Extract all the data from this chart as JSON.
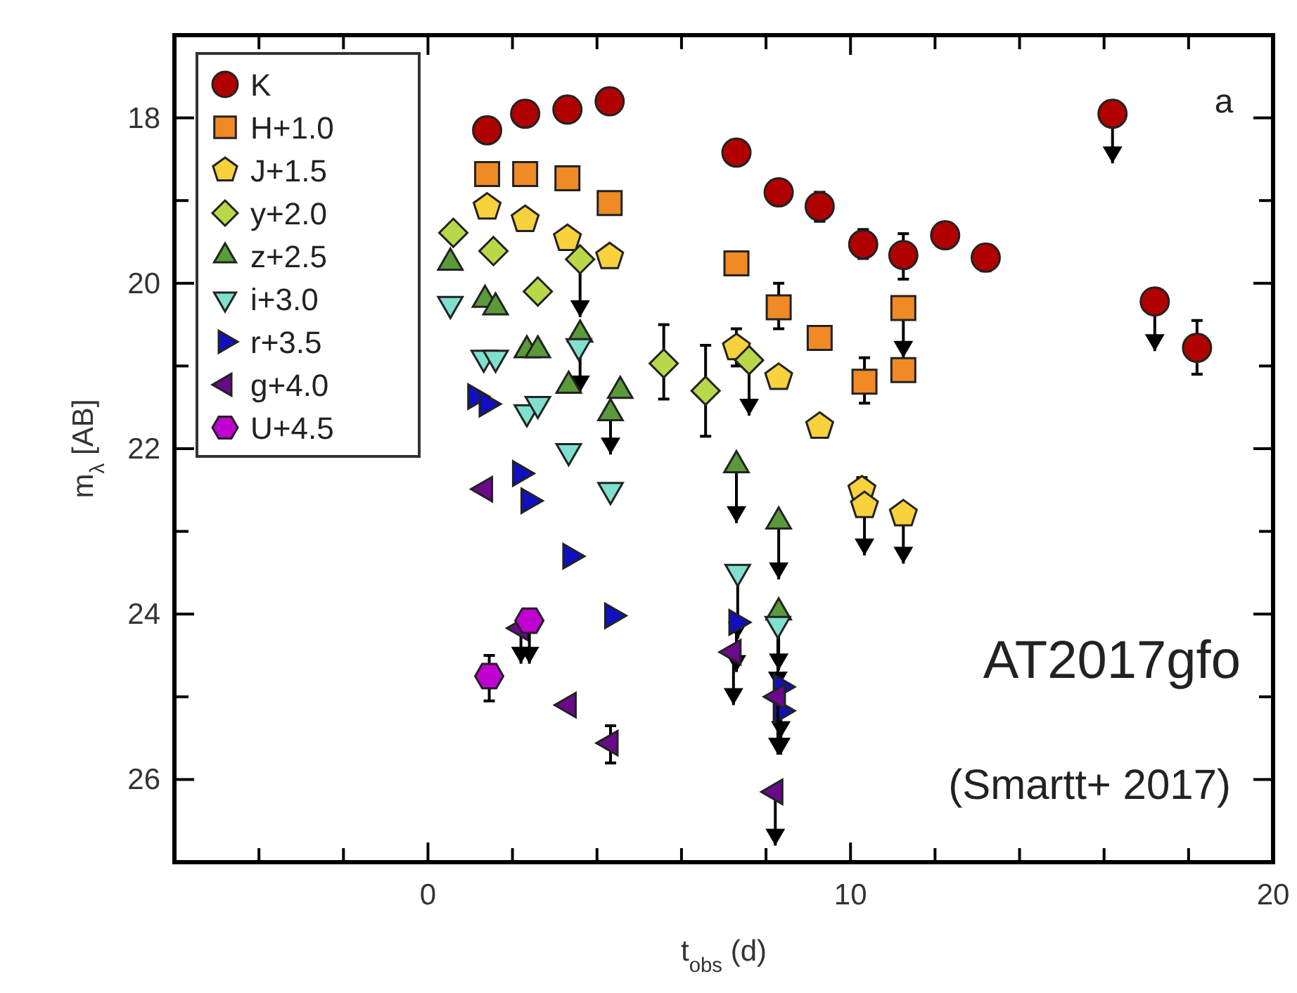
{
  "chart_data": {
    "type": "scatter",
    "xlabel": "t$_{obs}$ (d)",
    "ylabel": "m$_{λ}$ [AB]",
    "xlim": [
      -6,
      20
    ],
    "ylim": [
      27,
      17
    ],
    "xticks": [
      {
        "value": -4,
        "label": null
      },
      {
        "value": -2,
        "label": null
      },
      0,
      {
        "value": 2,
        "label": null
      },
      {
        "value": 4,
        "label": null
      },
      {
        "value": 6,
        "label": null
      },
      {
        "value": 8,
        "label": null
      },
      10,
      {
        "value": 12,
        "label": null
      },
      {
        "value": 14,
        "label": null
      },
      {
        "value": 16,
        "label": null
      },
      {
        "value": 18,
        "label": null
      },
      20
    ],
    "yticks": [
      18,
      {
        "value": 19,
        "label": null
      },
      20,
      {
        "value": 21,
        "label": null
      },
      22,
      {
        "value": 23,
        "label": null
      },
      24,
      {
        "value": 25,
        "label": null
      },
      26
    ],
    "grid": false,
    "legend": "top left",
    "annotations": [
      "a",
      "AT2017gfo",
      "(Smartt+ 2017)"
    ],
    "series": [
      {
        "name": "K",
        "color": "#b00000",
        "marker": "circle",
        "x": [
          1.4,
          2.3,
          3.3,
          4.3,
          7.3,
          8.3,
          9.27,
          10.3,
          11.25,
          12.24,
          13.2,
          16.2,
          17.2,
          18.2
        ],
        "values": [
          18.15,
          17.95,
          17.9,
          17.8,
          18.42,
          18.9,
          19.07,
          19.53,
          19.66,
          19.42,
          19.69,
          17.95,
          20.22,
          20.78
        ],
        "errors": [
          null,
          null,
          null,
          null,
          null,
          null,
          [
            18.9,
            19.25
          ],
          [
            19.35,
            19.7
          ],
          [
            19.4,
            19.95
          ],
          null,
          [
            19.55,
            19.85
          ],
          [
            17.95,
            18.55
          ],
          [
            20.22,
            20.82
          ],
          [
            20.45,
            21.1
          ]
        ]
      },
      {
        "name": "H+1.0",
        "color": "#f08a24",
        "marker": "square",
        "x": [
          1.4,
          2.3,
          3.3,
          4.3,
          7.3,
          8.3,
          9.27,
          10.33,
          11.25,
          11.25
        ],
        "values": [
          18.68,
          18.68,
          18.73,
          19.03,
          19.76,
          20.29,
          20.66,
          21.19,
          20.3,
          21.05
        ],
        "errors": [
          null,
          null,
          null,
          null,
          null,
          [
            20.0,
            20.55
          ],
          null,
          [
            20.9,
            21.45
          ],
          [
            20.3,
            20.9
          ],
          [
            20.95,
            21.15
          ]
        ]
      },
      {
        "name": "J+1.5",
        "color": "#f7d23c",
        "x": [
          1.4,
          2.3,
          3.3,
          4.3,
          7.3,
          8.3,
          9.27,
          10.27,
          10.33,
          11.25
        ],
        "values": [
          19.08,
          19.23,
          19.46,
          19.68,
          20.78,
          21.14,
          21.73,
          22.5,
          22.69,
          22.79
        ],
        "errors": [
          null,
          null,
          null,
          null,
          [
            20.55,
            21.0
          ],
          null,
          null,
          [
            22.35,
            22.6
          ],
          [
            22.69,
            23.29
          ],
          [
            22.79,
            23.39
          ]
        ]
      },
      {
        "name": "y+2.0",
        "color": "#b8d84a",
        "marker": "diamond",
        "x": [
          0.6,
          1.55,
          2.6,
          3.6,
          5.58,
          6.57,
          7.6
        ],
        "values": [
          19.39,
          19.61,
          20.1,
          19.71,
          20.97,
          21.3,
          20.93
        ],
        "errors": [
          null,
          null,
          null,
          [
            19.71,
            20.41
          ],
          [
            20.5,
            21.4
          ],
          [
            20.75,
            21.85
          ],
          [
            20.93,
            21.6
          ]
        ]
      },
      {
        "name": "z+2.5",
        "color": "#5a9a3a",
        "marker": "triangle",
        "x": [
          0.53,
          1.35,
          1.6,
          2.34,
          2.6,
          3.6,
          3.33,
          4.55,
          4.32,
          7.3,
          8.3,
          8.3
        ],
        "values": [
          19.75,
          20.2,
          20.29,
          20.81,
          20.81,
          20.62,
          21.24,
          21.3,
          21.57,
          22.2,
          22.88,
          23.98
        ],
        "errors": [
          null,
          null,
          null,
          null,
          null,
          [
            20.62,
            21.32
          ],
          null,
          null,
          [
            21.57,
            22.07
          ],
          [
            22.2,
            22.9
          ],
          [
            22.88,
            23.58
          ],
          [
            23.98,
            24.68
          ]
        ]
      },
      {
        "name": "i+3.0",
        "color": "#7fe0d0",
        "marker": "triangle-down",
        "x": [
          0.53,
          1.32,
          1.6,
          2.34,
          2.6,
          3.57,
          3.33,
          4.32,
          7.33,
          8.28
        ],
        "values": [
          20.25,
          20.9,
          20.9,
          21.56,
          21.46,
          20.76,
          22.03,
          22.5,
          23.49,
          24.12
        ],
        "errors": [
          null,
          null,
          null,
          null,
          null,
          null,
          null,
          null,
          [
            23.49,
            24.3
          ],
          [
            24.12,
            24.9
          ]
        ]
      },
      {
        "name": "r+3.5",
        "color": "#1010c0",
        "marker": "triangle-right",
        "x": [
          1.12,
          1.39,
          2.18,
          2.38,
          3.37,
          4.36,
          7.3,
          8.35,
          8.35
        ],
        "values": [
          21.37,
          21.46,
          22.3,
          22.63,
          23.3,
          24.02,
          24.1,
          24.88,
          25.17
        ],
        "errors": [
          null,
          null,
          null,
          null,
          null,
          null,
          [
            24.1,
            24.7
          ],
          [
            24.88,
            25.5
          ],
          [
            25.17,
            25.7
          ]
        ]
      },
      {
        "name": "g+4.0",
        "color": "#6a0a8a",
        "marker": "triangle-left",
        "x": [
          1.35,
          2.2,
          3.33,
          4.32,
          7.23,
          8.28,
          8.22
        ],
        "values": [
          22.49,
          24.17,
          25.1,
          25.56,
          24.46,
          25.0,
          26.15
        ],
        "errors": [
          null,
          [
            24.17,
            24.6
          ],
          null,
          [
            25.35,
            25.8
          ],
          [
            24.46,
            25.1
          ],
          [
            25.0,
            25.7
          ],
          [
            26.15,
            26.8
          ]
        ]
      },
      {
        "name": "U+4.5",
        "color": "#c000d0",
        "x": [
          1.45,
          2.4
        ],
        "values": [
          24.75,
          24.08
        ],
        "errors": [
          [
            24.5,
            25.05
          ],
          [
            24.08,
            24.6
          ]
        ]
      }
    ]
  }
}
